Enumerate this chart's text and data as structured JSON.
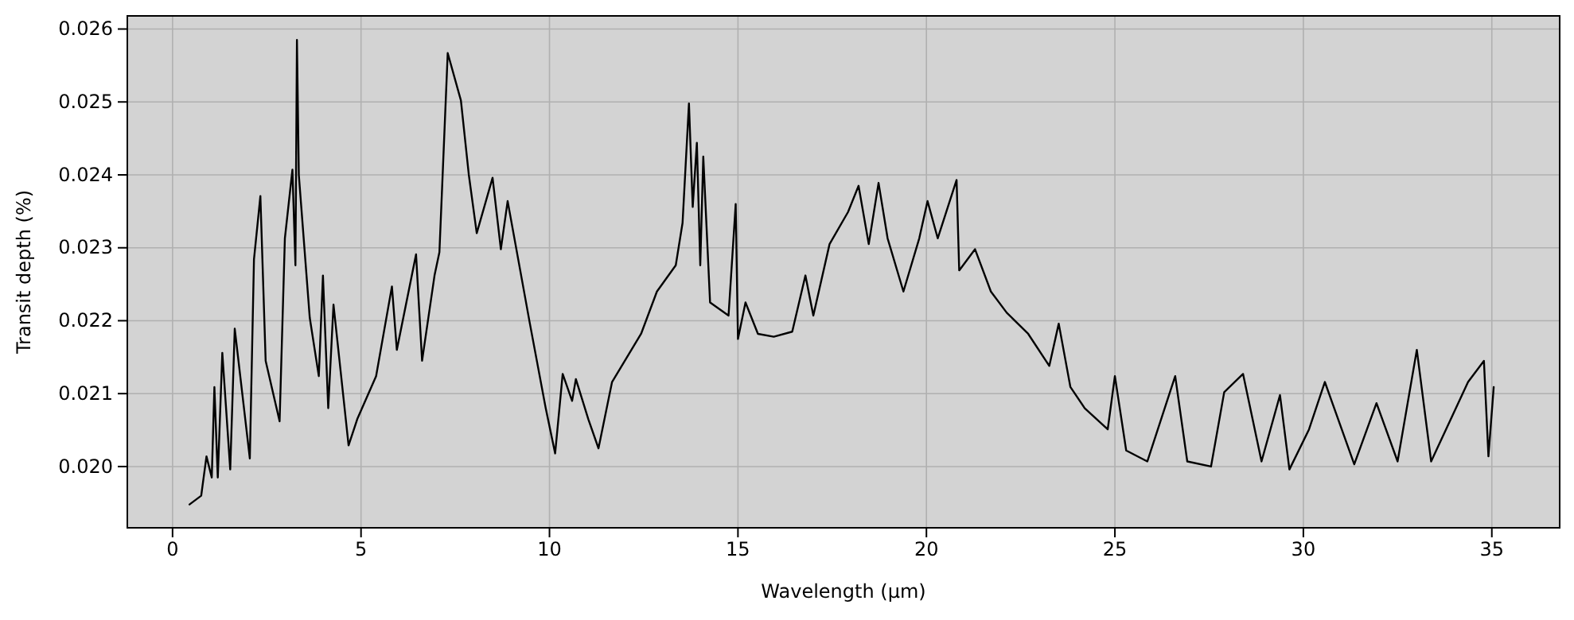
{
  "chart_data": {
    "type": "line",
    "xlabel": "Wavelength (μm)",
    "ylabel": "Transit depth (%)",
    "xlim": [
      -1.2,
      36.8
    ],
    "ylim": [
      0.01916,
      0.02618
    ],
    "xticks": [
      0,
      5,
      10,
      15,
      20,
      25,
      30,
      35
    ],
    "yticks": [
      {
        "value": 0.02,
        "label": "0.020"
      },
      {
        "value": 0.021,
        "label": "0.021"
      },
      {
        "value": 0.022,
        "label": "0.022"
      },
      {
        "value": 0.023,
        "label": "0.023"
      },
      {
        "value": 0.024,
        "label": "0.024"
      },
      {
        "value": 0.025,
        "label": "0.025"
      },
      {
        "value": 0.026,
        "label": "0.026"
      }
    ],
    "grid": true,
    "marker": "none",
    "line_style": "solid",
    "series": [
      {
        "color": "#000000",
        "x": [
          0.45,
          0.76,
          0.9,
          1.04,
          1.11,
          1.2,
          1.32,
          1.53,
          1.65,
          2.05,
          2.16,
          2.33,
          2.47,
          2.84,
          2.98,
          3.18,
          3.26,
          3.3,
          3.35,
          3.64,
          3.88,
          3.99,
          4.13,
          4.27,
          4.67,
          4.9,
          5.4,
          5.82,
          5.95,
          6.46,
          6.62,
          6.95,
          7.08,
          7.3,
          7.65,
          7.86,
          8.07,
          8.49,
          8.71,
          8.89,
          9.48,
          9.9,
          10.15,
          10.35,
          10.6,
          10.7,
          11.03,
          11.3,
          11.66,
          12.43,
          12.85,
          13.35,
          13.53,
          13.7,
          13.8,
          13.91,
          14.0,
          14.08,
          14.26,
          14.75,
          14.94,
          15.0,
          15.2,
          15.53,
          15.95,
          16.44,
          16.79,
          17.0,
          17.43,
          17.92,
          18.2,
          18.47,
          18.73,
          18.97,
          19.39,
          19.81,
          20.03,
          20.3,
          20.8,
          20.87,
          21.29,
          21.71,
          22.13,
          22.7,
          23.26,
          23.51,
          23.82,
          24.2,
          24.81,
          25.0,
          25.3,
          25.86,
          26.6,
          26.92,
          27.55,
          27.9,
          28.4,
          28.89,
          29.38,
          29.63,
          30.15,
          30.57,
          31.35,
          31.94,
          32.5,
          33.01,
          33.39,
          34.37,
          34.79,
          34.91,
          35.05
        ],
        "values": [
          0.01948,
          0.0196,
          0.02014,
          0.01985,
          0.02109,
          0.01985,
          0.02156,
          0.01996,
          0.02189,
          0.02011,
          0.02284,
          0.02371,
          0.02145,
          0.02062,
          0.02313,
          0.02407,
          0.02276,
          0.02585,
          0.024,
          0.02204,
          0.02124,
          0.02262,
          0.0208,
          0.02222,
          0.02029,
          0.02065,
          0.02124,
          0.02247,
          0.0216,
          0.02291,
          0.02145,
          0.02262,
          0.02294,
          0.02567,
          0.02502,
          0.024,
          0.0232,
          0.02396,
          0.02298,
          0.02364,
          0.02196,
          0.0208,
          0.02018,
          0.02127,
          0.0209,
          0.0212,
          0.02065,
          0.02025,
          0.02116,
          0.02182,
          0.0224,
          0.02276,
          0.02334,
          0.02498,
          0.02356,
          0.02444,
          0.02276,
          0.02425,
          0.02225,
          0.02207,
          0.0236,
          0.02175,
          0.02225,
          0.02182,
          0.02178,
          0.02185,
          0.02262,
          0.02207,
          0.02305,
          0.02349,
          0.02385,
          0.02305,
          0.02389,
          0.02313,
          0.0224,
          0.02313,
          0.02364,
          0.02313,
          0.02393,
          0.02269,
          0.02298,
          0.0224,
          0.02211,
          0.02182,
          0.02138,
          0.02196,
          0.02109,
          0.0208,
          0.02051,
          0.02124,
          0.02022,
          0.02007,
          0.02124,
          0.02007,
          0.02,
          0.02102,
          0.02127,
          0.02007,
          0.02098,
          0.01996,
          0.02051,
          0.02116,
          0.02003,
          0.02087,
          0.02007,
          0.0216,
          0.02007,
          0.02116,
          0.02145,
          0.02014,
          0.02109
        ]
      }
    ]
  }
}
